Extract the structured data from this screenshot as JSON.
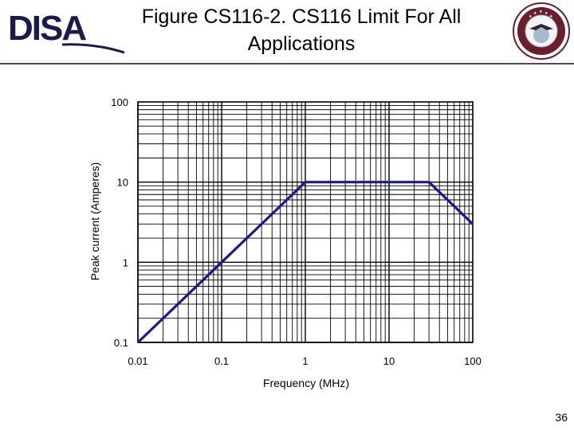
{
  "slide": {
    "title": "Figure CS116-2. CS116 Limit For All Applications",
    "page_number": "36",
    "logo_text": "DISA",
    "seal_label": "DEFENSE INFORMATION SYSTEMS AGENCY",
    "colors": {
      "title_rule": "#6a3a5a",
      "logo_navy": "#1b1b4b",
      "seal_maroon": "#6b1f2e",
      "curve": "#1a1a8c",
      "grid": "#000000"
    }
  },
  "chart_data": {
    "type": "line",
    "title": "",
    "xlabel": "Frequency (MHz)",
    "ylabel": "Peak current (Amperes)",
    "x_scale": "log",
    "y_scale": "log",
    "xlim": [
      0.01,
      100
    ],
    "ylim": [
      0.1,
      100
    ],
    "x_ticks": [
      0.01,
      0.1,
      1,
      10,
      100
    ],
    "x_tick_labels": [
      "0.01",
      "0.1",
      "1",
      "10",
      "100"
    ],
    "y_ticks": [
      0.1,
      1,
      10,
      100
    ],
    "y_tick_labels": [
      "0.1",
      "1",
      "10",
      "100"
    ],
    "grid": true,
    "series": [
      {
        "x": [
          0.01,
          1,
          30,
          100
        ],
        "y": [
          0.1,
          10,
          10,
          3
        ]
      }
    ]
  }
}
